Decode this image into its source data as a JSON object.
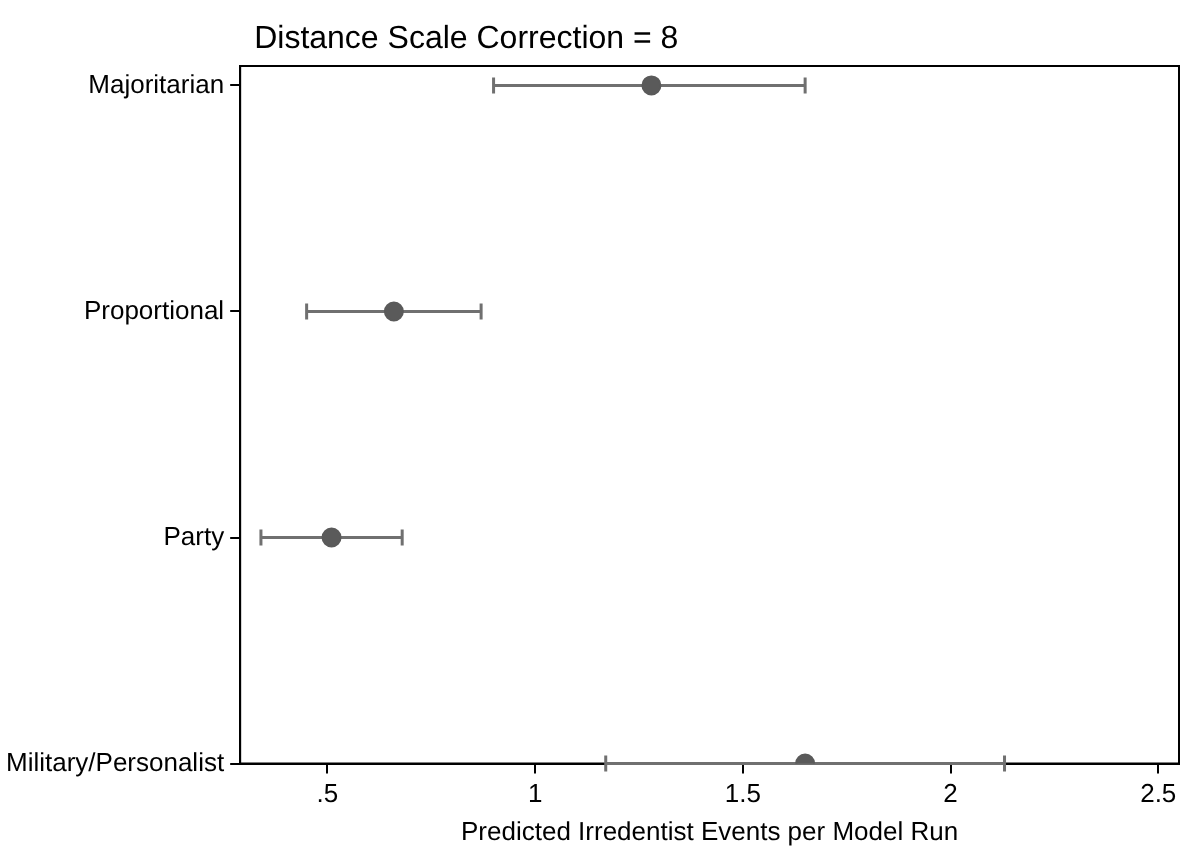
{
  "chart_data": {
    "type": "scatter",
    "title": "Distance Scale Correction = 8",
    "xlabel": "Predicted Irredentist Events per Model Run",
    "categories": [
      "Majoritarian",
      "Proportional",
      "Party",
      "Military/Personalist"
    ],
    "orientation": "horizontal",
    "values": [
      1.28,
      0.66,
      0.51,
      1.65
    ],
    "errors": [
      [
        0.9,
        1.65
      ],
      [
        0.45,
        0.87
      ],
      [
        0.34,
        0.68
      ],
      [
        1.17,
        2.13
      ]
    ],
    "color": "#5a5a5a",
    "xlim": [
      0.29,
      2.55
    ],
    "xticks": [
      {
        "value": 0.5,
        "label": ".5"
      },
      1,
      1.5,
      2,
      2.5
    ],
    "grid": false,
    "legend": false,
    "marker": "circle"
  }
}
